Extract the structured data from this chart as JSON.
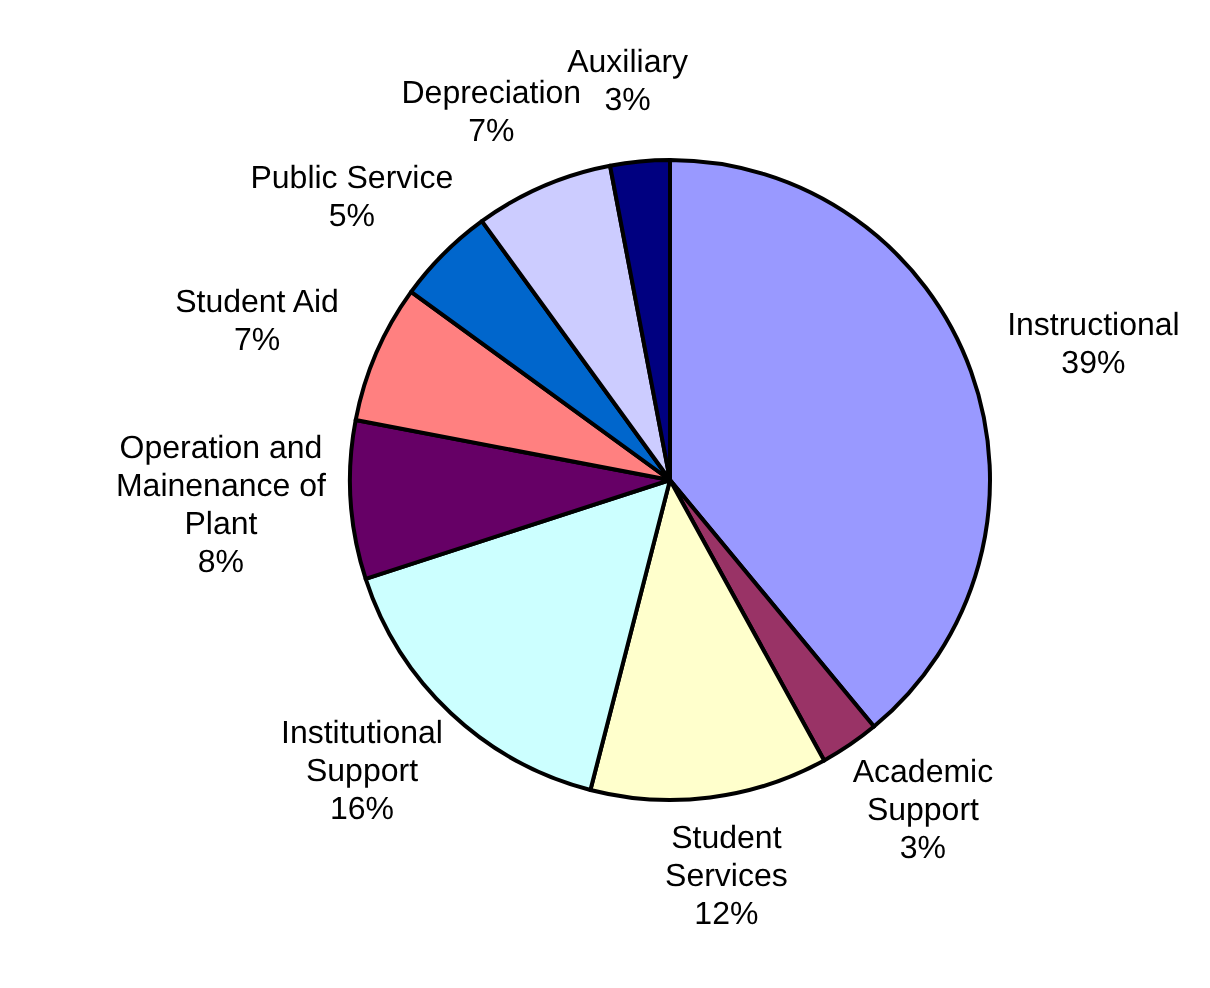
{
  "chart_data": {
    "type": "pie",
    "categories": [
      "Instructional",
      "Academic Support",
      "Student Services",
      "Institutional Support",
      "Operation and Mainenance of Plant",
      "Student Aid",
      "Public Service",
      "Depreciation",
      "Auxiliary"
    ],
    "values": [
      39,
      3,
      12,
      16,
      8,
      7,
      5,
      7,
      3
    ],
    "value_labels": [
      "39%",
      "3%",
      "12%",
      "16%",
      "8%",
      "7%",
      "5%",
      "7%",
      "3%"
    ],
    "colors": [
      "#9999ff",
      "#993366",
      "#ffffcc",
      "#ccffff",
      "#660066",
      "#ff8080",
      "#0066cc",
      "#ccccff",
      "#000080"
    ]
  }
}
